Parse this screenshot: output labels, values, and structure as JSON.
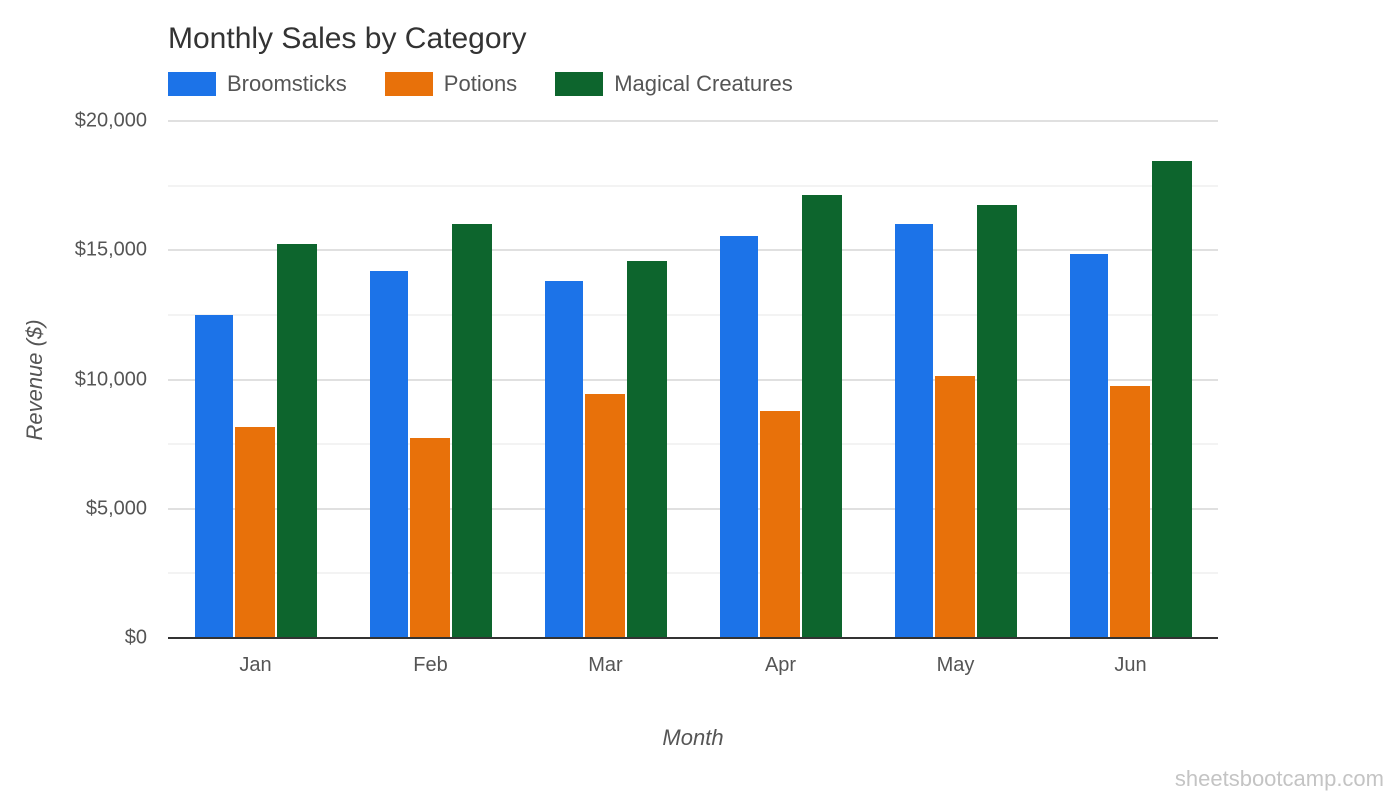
{
  "chart_data": {
    "type": "bar",
    "title": "Monthly Sales by Category",
    "xlabel": "Month",
    "ylabel": "Revenue ($)",
    "categories": [
      "Jan",
      "Feb",
      "Mar",
      "Apr",
      "May",
      "Jun"
    ],
    "series": [
      {
        "name": "Broomsticks",
        "color": "#1c73e8",
        "values": [
          12500,
          14200,
          13800,
          15550,
          16000,
          14850
        ]
      },
      {
        "name": "Potions",
        "color": "#e8710a",
        "values": [
          8150,
          7750,
          9450,
          8800,
          10150,
          9750
        ]
      },
      {
        "name": "Magical Creatures",
        "color": "#0d652d",
        "values": [
          15250,
          16000,
          14600,
          17150,
          16750,
          18450
        ]
      }
    ],
    "ylim": [
      0,
      20000
    ],
    "yticks": [
      0,
      5000,
      10000,
      15000,
      20000
    ],
    "ytick_labels": [
      "$0",
      "$5,000",
      "$10,000",
      "$15,000",
      "$20,000"
    ],
    "minor_gridlines": [
      2500,
      7500,
      12500,
      17500
    ],
    "grid": true,
    "legend_position": "top"
  },
  "watermark": "sheetsbootcamp.com"
}
